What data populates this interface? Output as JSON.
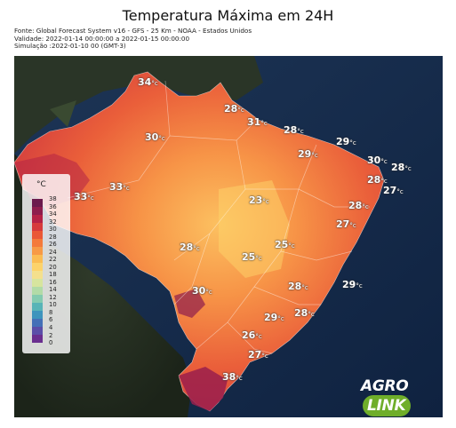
{
  "title": "Temperatura Máxima em 24H",
  "meta": {
    "source": "Fonte: Global Forecast System v16 - GFS - 25 Km - NOAA - Estados Unidos",
    "validity": "Validade: 2022-01-14 00:00:00 a 2022-01-15 00:00:00",
    "simulation": "Simulação :2022-01-10 00 (GMT-3)"
  },
  "legend": {
    "unit": "°C",
    "ticks": [
      "38",
      "36",
      "34",
      "32",
      "30",
      "28",
      "26",
      "24",
      "22",
      "20",
      "18",
      "16",
      "14",
      "12",
      "10",
      "8",
      "6",
      "4",
      "2",
      "0"
    ],
    "colors": [
      "#6b1a4d",
      "#8e1d4d",
      "#b52246",
      "#d63a3c",
      "#ea5836",
      "#f47a3a",
      "#f79a45",
      "#fbbc52",
      "#fdd36a",
      "#f4e08d",
      "#d7e59e",
      "#b2dba7",
      "#84cbb0",
      "#57b4b7",
      "#3d94bd",
      "#4470b7",
      "#5b4ea8",
      "#6a2e8f"
    ]
  },
  "labels": [
    {
      "value": "34",
      "unit": "°c"
    },
    {
      "value": "28",
      "unit": "°c"
    },
    {
      "value": "31",
      "unit": "°c"
    },
    {
      "value": "30",
      "unit": "°c"
    },
    {
      "value": "28",
      "unit": "°c"
    },
    {
      "value": "29",
      "unit": "°c"
    },
    {
      "value": "29",
      "unit": "°c"
    },
    {
      "value": "30",
      "unit": "°c"
    },
    {
      "value": "28",
      "unit": "°c"
    },
    {
      "value": "28",
      "unit": "°c"
    },
    {
      "value": "27",
      "unit": "°c"
    },
    {
      "value": "33",
      "unit": "°c"
    },
    {
      "value": "33",
      "unit": "°c"
    },
    {
      "value": "23",
      "unit": "°c"
    },
    {
      "value": "28",
      "unit": "°c"
    },
    {
      "value": "27",
      "unit": "°c"
    },
    {
      "value": "28",
      "unit": "°c"
    },
    {
      "value": "25",
      "unit": "°c"
    },
    {
      "value": "25",
      "unit": "°c"
    },
    {
      "value": "30",
      "unit": "°c"
    },
    {
      "value": "28",
      "unit": "°c"
    },
    {
      "value": "29",
      "unit": "°c"
    },
    {
      "value": "29",
      "unit": "°c"
    },
    {
      "value": "28",
      "unit": "°c"
    },
    {
      "value": "26",
      "unit": "°c"
    },
    {
      "value": "27",
      "unit": "°c"
    },
    {
      "value": "38",
      "unit": "°c"
    }
  ],
  "logo": {
    "part1": "AGRO",
    "part2": "LINK"
  }
}
